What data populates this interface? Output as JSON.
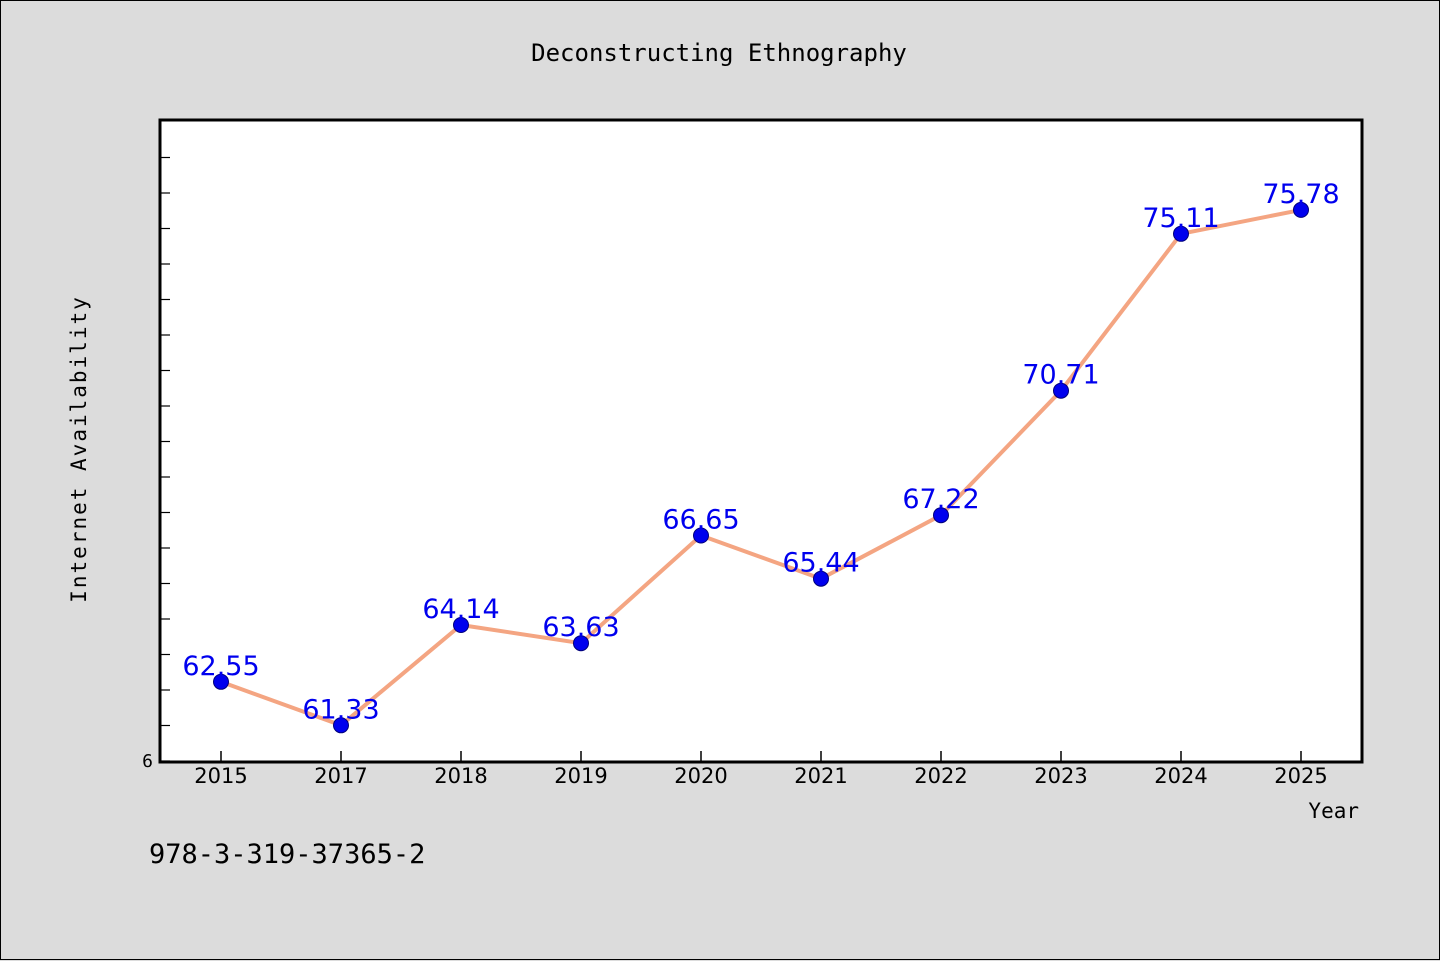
{
  "chart_data": {
    "type": "line",
    "title": "Deconstructing Ethnography",
    "xlabel": "Year",
    "ylabel": "Internet Availability",
    "categories": [
      "2015",
      "2017",
      "2018",
      "2019",
      "2020",
      "2021",
      "2022",
      "2023",
      "2024",
      "2025"
    ],
    "series": [
      {
        "values": [
          62.55,
          61.33,
          64.14,
          63.63,
          66.65,
          65.44,
          67.22,
          70.71,
          75.11,
          75.78
        ],
        "labels": [
          "62.55",
          "61.33",
          "64.14",
          "63.63",
          "66.65",
          "65.44",
          "67.22",
          "70.71",
          "75.11",
          "75.78"
        ]
      }
    ],
    "ylim": [
      60.3,
      78.3
    ],
    "ytick_label": "6",
    "grid": false,
    "colors": {
      "line": "#f4a582",
      "marker": "#0000ee",
      "label": "#0000ee"
    }
  },
  "footer": {
    "isbn": "978-3-319-37365-2"
  }
}
